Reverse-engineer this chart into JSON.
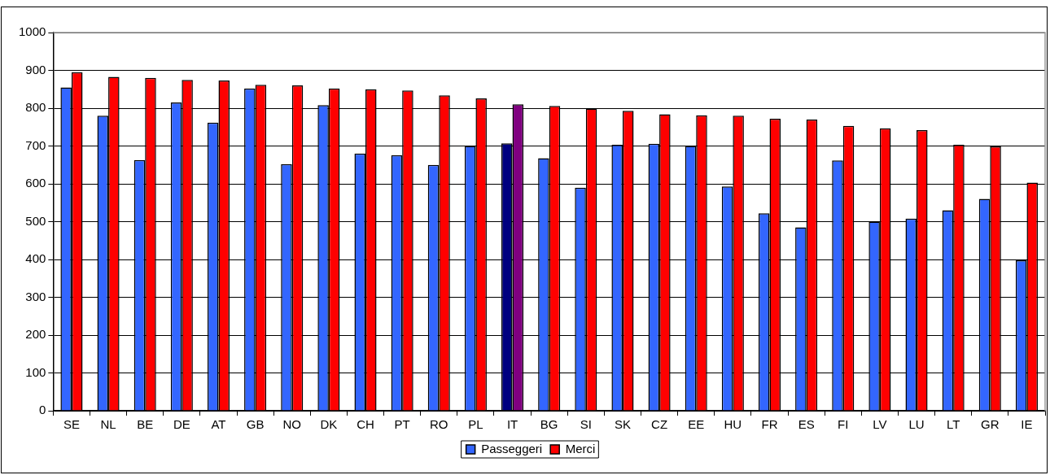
{
  "chart_data": {
    "type": "bar",
    "categories": [
      "SE",
      "NL",
      "BE",
      "DE",
      "AT",
      "GB",
      "NO",
      "DK",
      "CH",
      "PT",
      "RO",
      "PL",
      "IT",
      "BG",
      "SI",
      "SK",
      "CZ",
      "EE",
      "HU",
      "FR",
      "ES",
      "FI",
      "LV",
      "LU",
      "LT",
      "GR",
      "IE"
    ],
    "series": [
      {
        "name": "Passeggeri",
        "color": "#3366ff",
        "colors": [
          "#3366ff",
          "#3366ff",
          "#3366ff",
          "#3366ff",
          "#3366ff",
          "#3366ff",
          "#3366ff",
          "#3366ff",
          "#3366ff",
          "#3366ff",
          "#3366ff",
          "#3366ff",
          "#000080",
          "#3366ff",
          "#3366ff",
          "#3366ff",
          "#3366ff",
          "#3366ff",
          "#3366ff",
          "#3366ff",
          "#3366ff",
          "#3366ff",
          "#3366ff",
          "#3366ff",
          "#3366ff",
          "#3366ff",
          "#3366ff"
        ],
        "values": [
          855,
          780,
          663,
          815,
          762,
          852,
          652,
          808,
          680,
          676,
          650,
          700,
          707,
          668,
          590,
          703,
          706,
          700,
          593,
          522,
          485,
          662,
          500,
          508,
          530,
          560,
          398
        ]
      },
      {
        "name": "Merci",
        "color": "#ff0000",
        "colors": [
          "#ff0000",
          "#ff0000",
          "#ff0000",
          "#ff0000",
          "#ff0000",
          "#ff0000",
          "#ff0000",
          "#ff0000",
          "#ff0000",
          "#ff0000",
          "#ff0000",
          "#ff0000",
          "#800080",
          "#ff0000",
          "#ff0000",
          "#ff0000",
          "#ff0000",
          "#ff0000",
          "#ff0000",
          "#ff0000",
          "#ff0000",
          "#ff0000",
          "#ff0000",
          "#ff0000",
          "#ff0000",
          "#ff0000",
          "#ff0000"
        ],
        "values": [
          895,
          883,
          880,
          875,
          873,
          862,
          860,
          852,
          850,
          847,
          834,
          826,
          810,
          806,
          799,
          793,
          784,
          781,
          780,
          772,
          770,
          753,
          747,
          742,
          703,
          699,
          603
        ]
      }
    ],
    "ylim": [
      0,
      1000
    ],
    "yticks": [
      0,
      100,
      200,
      300,
      400,
      500,
      600,
      700,
      800,
      900,
      1000
    ],
    "grid": "y",
    "legend": "bottom"
  }
}
